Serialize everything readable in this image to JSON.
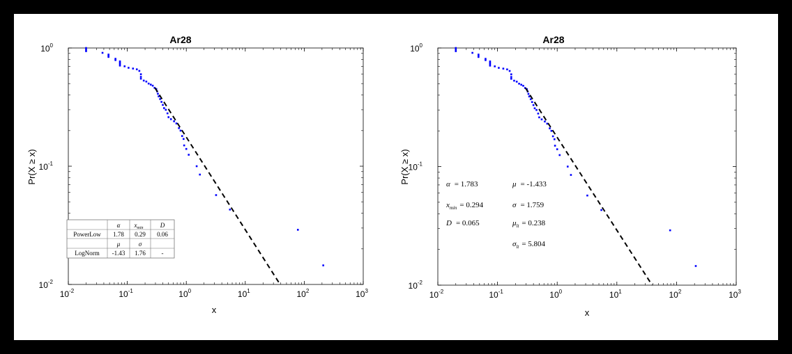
{
  "chart_data": [
    {
      "type": "scatter",
      "title": "Ar28",
      "xlabel": "x",
      "ylabel": "Pr(X ≥ x)",
      "xscale": "log",
      "yscale": "log",
      "xlim": [
        0.01,
        1000
      ],
      "ylim": [
        0.01,
        1
      ],
      "xticks": [
        "10",
        "10",
        "10",
        "10",
        "10",
        "10"
      ],
      "xtick_exps": [
        "-2",
        "-1",
        "0",
        "1",
        "2",
        "3"
      ],
      "yticks": [
        "10",
        "10",
        "10"
      ],
      "ytick_exps": [
        "-2",
        "-1",
        "0"
      ],
      "grid": false,
      "series": [
        {
          "role": "data",
          "color": "#0000ff",
          "x": [
            0.02,
            0.02,
            0.02,
            0.038,
            0.048,
            0.048,
            0.048,
            0.063,
            0.063,
            0.075,
            0.075,
            0.075,
            0.075,
            0.09,
            0.105,
            0.125,
            0.145,
            0.16,
            0.17,
            0.17,
            0.17,
            0.19,
            0.21,
            0.23,
            0.25,
            0.27,
            0.29,
            0.31,
            0.32,
            0.33,
            0.34,
            0.36,
            0.38,
            0.4,
            0.42,
            0.45,
            0.48,
            0.5,
            0.55,
            0.62,
            0.68,
            0.75,
            0.8,
            0.85,
            0.9,
            0.92,
            1.0,
            1.1,
            1.5,
            1.7,
            3.2,
            5.5,
            78,
            210
          ],
          "y": [
            1.0,
            0.97,
            0.94,
            0.91,
            0.88,
            0.86,
            0.84,
            0.81,
            0.79,
            0.77,
            0.75,
            0.73,
            0.71,
            0.7,
            0.68,
            0.67,
            0.66,
            0.64,
            0.6,
            0.57,
            0.55,
            0.53,
            0.52,
            0.5,
            0.49,
            0.48,
            0.46,
            0.45,
            0.43,
            0.41,
            0.39,
            0.37,
            0.35,
            0.33,
            0.31,
            0.3,
            0.28,
            0.26,
            0.25,
            0.24,
            0.23,
            0.21,
            0.2,
            0.18,
            0.17,
            0.15,
            0.14,
            0.125,
            0.1,
            0.085,
            0.057,
            0.043,
            0.029,
            0.0145
          ]
        },
        {
          "role": "fit",
          "color": "#000000",
          "style": "dashed",
          "x": [
            0.294,
            39
          ],
          "y": [
            0.46,
            0.01
          ]
        }
      ],
      "legend_table": {
        "col_headers": [
          "α",
          "x",
          "D"
        ],
        "col_header_subs": [
          "",
          "min",
          ""
        ],
        "mid_headers": [
          "μ",
          "σ",
          ""
        ],
        "rows": [
          {
            "label": "PowerLow",
            "values": [
              "1.78",
              "0.29",
              "0.06"
            ]
          },
          {
            "label": "LogNorm",
            "values": [
              "-1.43",
              "1.76",
              "-"
            ]
          }
        ]
      }
    },
    {
      "type": "scatter",
      "title": "Ar28",
      "xlabel": "x",
      "ylabel": "Pr(X ≥ x)",
      "xscale": "log",
      "yscale": "log",
      "xlim": [
        0.01,
        1000
      ],
      "ylim": [
        0.01,
        1
      ],
      "xticks": [
        "10",
        "10",
        "10",
        "10",
        "10",
        "10"
      ],
      "xtick_exps": [
        "-2",
        "-1",
        "0",
        "1",
        "2",
        "3"
      ],
      "yticks": [
        "10",
        "10",
        "10"
      ],
      "ytick_exps": [
        "-2",
        "-1",
        "0"
      ],
      "grid": false,
      "series": [
        {
          "role": "data",
          "color": "#0000ff",
          "x": [
            0.02,
            0.02,
            0.02,
            0.038,
            0.048,
            0.048,
            0.048,
            0.063,
            0.063,
            0.075,
            0.075,
            0.075,
            0.075,
            0.09,
            0.105,
            0.125,
            0.145,
            0.16,
            0.17,
            0.17,
            0.17,
            0.19,
            0.21,
            0.23,
            0.25,
            0.27,
            0.29,
            0.31,
            0.32,
            0.33,
            0.34,
            0.36,
            0.38,
            0.4,
            0.42,
            0.45,
            0.48,
            0.5,
            0.55,
            0.62,
            0.68,
            0.75,
            0.8,
            0.85,
            0.9,
            0.92,
            1.0,
            1.1,
            1.5,
            1.7,
            3.2,
            5.5,
            78,
            210
          ],
          "y": [
            1.0,
            0.97,
            0.94,
            0.91,
            0.88,
            0.86,
            0.84,
            0.81,
            0.79,
            0.77,
            0.75,
            0.73,
            0.71,
            0.7,
            0.68,
            0.67,
            0.66,
            0.64,
            0.6,
            0.57,
            0.55,
            0.53,
            0.52,
            0.5,
            0.49,
            0.48,
            0.46,
            0.45,
            0.43,
            0.41,
            0.39,
            0.37,
            0.35,
            0.33,
            0.31,
            0.3,
            0.28,
            0.26,
            0.25,
            0.24,
            0.23,
            0.21,
            0.2,
            0.18,
            0.17,
            0.15,
            0.14,
            0.125,
            0.1,
            0.085,
            0.057,
            0.043,
            0.029,
            0.0145
          ]
        },
        {
          "role": "fit",
          "color": "#000000",
          "style": "dashed",
          "x": [
            0.294,
            39
          ],
          "y": [
            0.46,
            0.01
          ]
        }
      ],
      "annotations": [
        {
          "symbol": "α",
          "sub": "",
          "value": "= 1.783"
        },
        {
          "symbol": "x",
          "sub": "min",
          "value": "= 0.294"
        },
        {
          "symbol": "D",
          "sub": "",
          "value": "= 0.065"
        },
        {
          "symbol": "μ",
          "sub": "",
          "value": "= -1.433"
        },
        {
          "symbol": "σ",
          "sub": "",
          "value": "= 1.759"
        },
        {
          "symbol": "μ",
          "sub": "lt",
          "value": "= 0.238"
        },
        {
          "symbol": "σ",
          "sub": "lt",
          "value": "= 5.804"
        }
      ]
    }
  ]
}
